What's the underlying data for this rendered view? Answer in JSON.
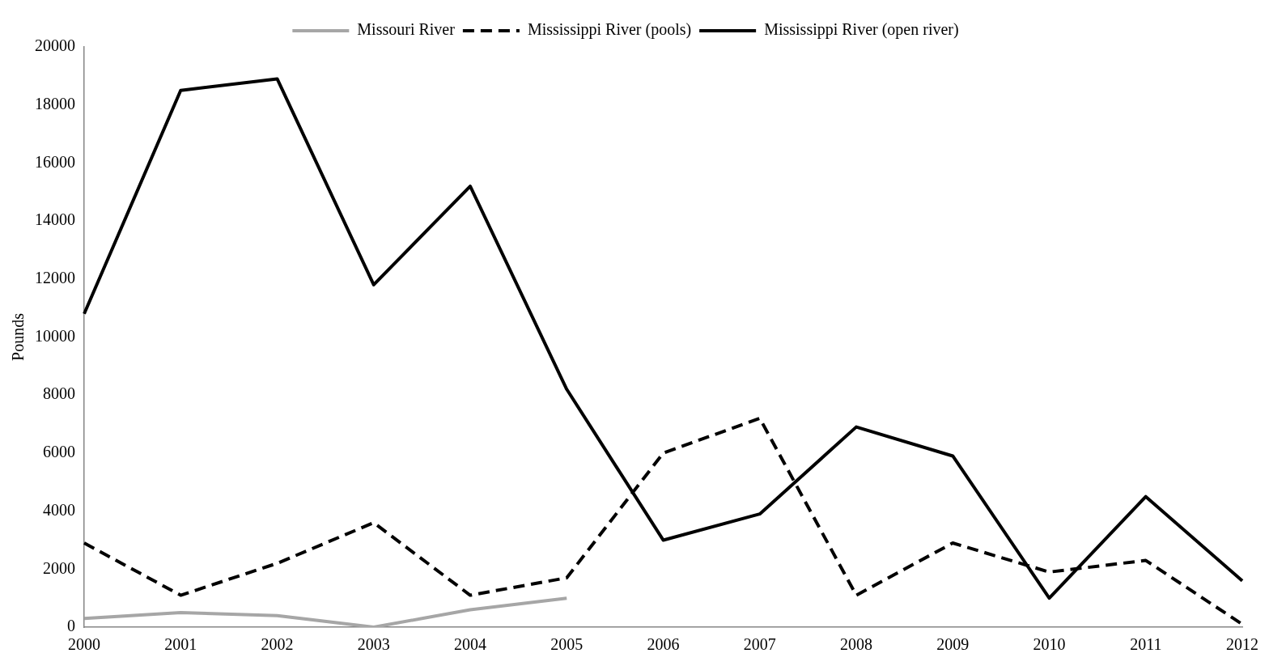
{
  "chart_data": {
    "type": "line",
    "ylabel": "Pounds",
    "categories": [
      "2000",
      "2001",
      "2002",
      "2003",
      "2004",
      "2005",
      "2006",
      "2007",
      "2008",
      "2009",
      "2010",
      "2011",
      "2012"
    ],
    "series": [
      {
        "name": "Missouri River",
        "color": "#a6a6a6",
        "line_style": "solid",
        "values": [
          300,
          500,
          400,
          0,
          600,
          1000,
          null,
          null,
          null,
          null,
          null,
          null,
          null
        ]
      },
      {
        "name": "Mississippi River (pools)",
        "color": "#000000",
        "line_style": "dashed",
        "values": [
          2900,
          1100,
          2200,
          3600,
          1100,
          1700,
          6000,
          7200,
          1100,
          2900,
          1900,
          2300,
          100
        ]
      },
      {
        "name": "Mississippi River (open river)",
        "color": "#000000",
        "line_style": "solid",
        "values": [
          10800,
          18500,
          18900,
          11800,
          15200,
          8200,
          3000,
          3900,
          6900,
          5900,
          1000,
          4500,
          1600
        ]
      }
    ],
    "ylim": [
      0,
      20000
    ],
    "yticks": [
      0,
      2000,
      4000,
      6000,
      8000,
      10000,
      12000,
      14000,
      16000,
      18000,
      20000
    ],
    "grid": false,
    "legend": "top",
    "marker": "none"
  }
}
